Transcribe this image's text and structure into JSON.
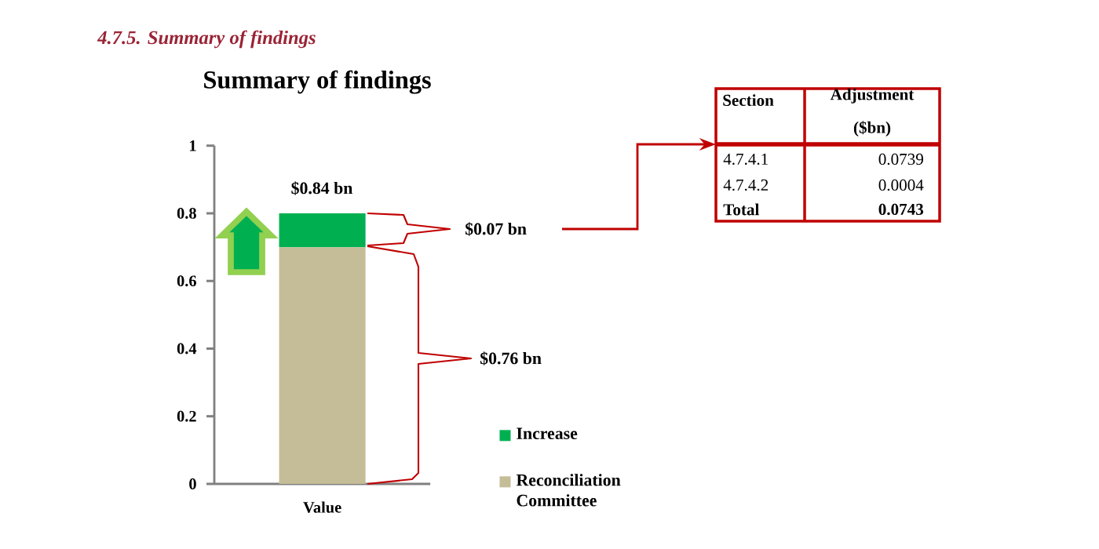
{
  "chart_data": [
    {
      "type": "bar",
      "title": "Summary of findings",
      "categories": [
        "Value"
      ],
      "stacked": true,
      "series": [
        {
          "name": "Reconciliation Committee",
          "color": "#c4bd97",
          "values": [
            0.7
          ]
        },
        {
          "name": "Increase",
          "color": "#00b050",
          "values": [
            0.1
          ]
        }
      ],
      "ylim": [
        0,
        1
      ],
      "yticks": [
        0,
        0.2,
        0.4,
        0.6,
        0.8,
        1
      ],
      "legend": "right",
      "annotations": [
        "4.7.5. Summary of findings",
        "$0.84 bn",
        "$0.07 bn",
        "$0.76 bn"
      ]
    },
    {
      "type": "other",
      "annotations": [
        "Section",
        "Adjustment ($bn)",
        "4.7.4.1",
        "0.0739",
        "4.7.4.2",
        "0.0004",
        "Total",
        "0.0743"
      ]
    }
  ]
}
